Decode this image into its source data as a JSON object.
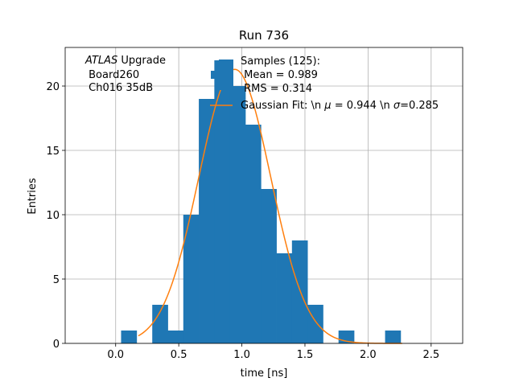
{
  "chart_data": {
    "type": "bar",
    "title": "Run 736",
    "xlabel": "time [ns]",
    "ylabel": "Entries",
    "xlim": [
      -0.4,
      2.75
    ],
    "ylim": [
      0,
      23
    ],
    "xticks": [
      "0.0",
      "0.5",
      "1.0",
      "1.5",
      "2.0",
      "2.5"
    ],
    "xtick_values": [
      0.0,
      0.5,
      1.0,
      1.5,
      2.0,
      2.5
    ],
    "yticks": [
      "0",
      "5",
      "10",
      "15",
      "20"
    ],
    "ytick_values": [
      0,
      5,
      10,
      15,
      20
    ],
    "grid": true,
    "bin_width": 0.123,
    "bins": [
      {
        "x0": 0.043,
        "value": 1
      },
      {
        "x0": 0.29,
        "value": 3
      },
      {
        "x0": 0.413,
        "value": 1
      },
      {
        "x0": 0.536,
        "value": 10
      },
      {
        "x0": 0.659,
        "value": 19
      },
      {
        "x0": 0.782,
        "value": 22
      },
      {
        "x0": 0.905,
        "value": 20
      },
      {
        "x0": 1.028,
        "value": 17
      },
      {
        "x0": 1.151,
        "value": 12
      },
      {
        "x0": 1.274,
        "value": 7
      },
      {
        "x0": 1.397,
        "value": 8
      },
      {
        "x0": 1.52,
        "value": 3
      },
      {
        "x0": 1.766,
        "value": 1
      },
      {
        "x0": 2.135,
        "value": 1
      }
    ],
    "fit": {
      "mu": 0.944,
      "sigma": 0.285,
      "amplitude": 21.3,
      "x_range": [
        0.18,
        2.27
      ]
    },
    "histogram_color": "#1f77b4",
    "fit_color": "#ff7f0e",
    "legend_position": "top-right",
    "legend": {
      "samples_lines": [
        "Samples (125):",
        " Mean = 0.989",
        " RMS = 0.314"
      ],
      "fit_label": "Gaussian Fit: \\n $\\mu$ = 0.944 \\n $\\sigma$=0.285"
    },
    "annotation": {
      "atlas": "ATLAS",
      "upgrade": " Upgrade",
      "line2": " Board260",
      "line3": " Ch016 35dB"
    }
  }
}
